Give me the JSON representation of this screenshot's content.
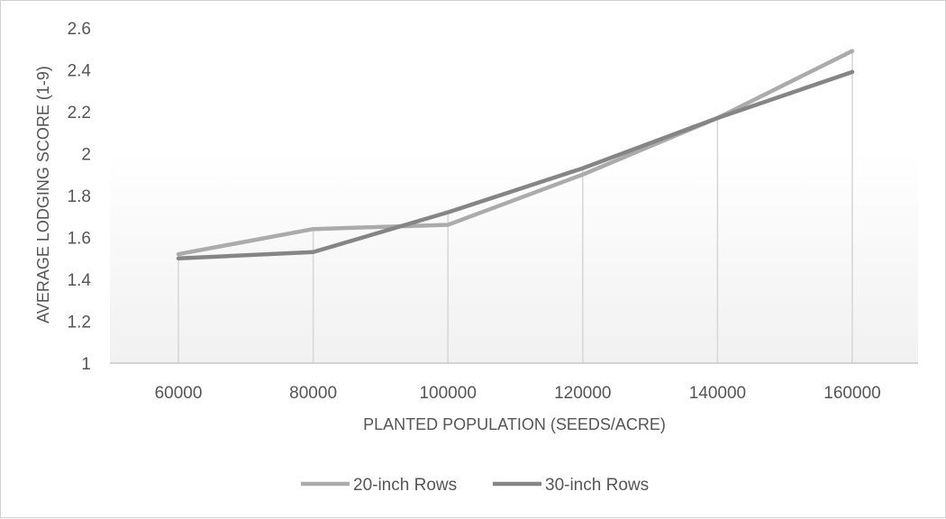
{
  "chart_data": {
    "type": "line",
    "categories": [
      "60000",
      "80000",
      "100000",
      "120000",
      "140000",
      "160000"
    ],
    "series": [
      {
        "name": "20-inch Rows",
        "color": "#ababab",
        "values": [
          1.52,
          1.64,
          1.66,
          1.9,
          2.17,
          2.49
        ]
      },
      {
        "name": "30-inch Rows",
        "color": "#858585",
        "values": [
          1.5,
          1.53,
          1.72,
          1.93,
          2.17,
          2.39
        ]
      }
    ],
    "xlabel": "PLANTED POPULATION (SEEDS/ACRE)",
    "ylabel": "AVERAGE LODGING SCORE (1-9)",
    "ylim": [
      1,
      2.6
    ],
    "yticks": [
      "1",
      "1.2",
      "1.4",
      "1.6",
      "1.8",
      "2",
      "2.2",
      "2.4",
      "2.6"
    ],
    "grid": "vertical drop lines at each category",
    "legend": "bottom-center"
  }
}
